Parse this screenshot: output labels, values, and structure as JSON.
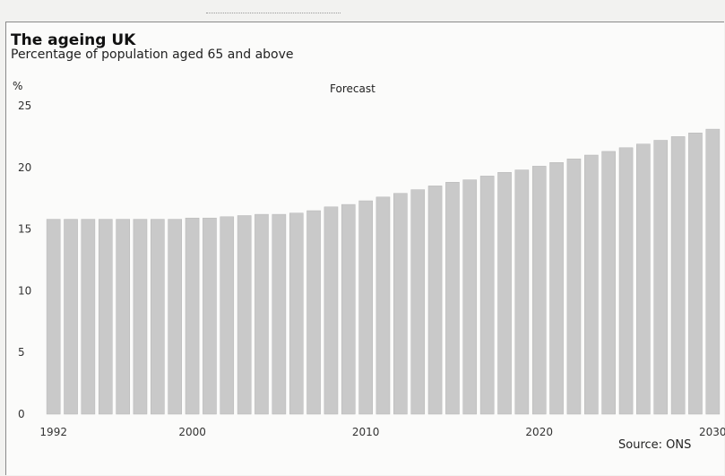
{
  "chart_data": {
    "type": "bar",
    "title": "The ageing UK",
    "subtitle": "Percentage of population aged 65 and above",
    "ylabel": "%",
    "annotation": "Forecast",
    "source": "Source: ONS",
    "ylim": [
      0,
      25
    ],
    "yticks": [
      "0",
      "5",
      "10",
      "15",
      "20",
      "25"
    ],
    "xtick_labels": [
      {
        "year": 1992,
        "label": "1992"
      },
      {
        "year": 2000,
        "label": "2000"
      },
      {
        "year": 2010,
        "label": "2010"
      },
      {
        "year": 2020,
        "label": "2020"
      },
      {
        "year": 2030,
        "label": "2030"
      }
    ],
    "categories": [
      1992,
      1993,
      1994,
      1995,
      1996,
      1997,
      1998,
      1999,
      2000,
      2001,
      2002,
      2003,
      2004,
      2005,
      2006,
      2007,
      2008,
      2009,
      2010,
      2011,
      2012,
      2013,
      2014,
      2015,
      2016,
      2017,
      2018,
      2019,
      2020,
      2021,
      2022,
      2023,
      2024,
      2025,
      2026,
      2027,
      2028,
      2029,
      2030
    ],
    "values": [
      15.8,
      15.8,
      15.8,
      15.8,
      15.8,
      15.8,
      15.8,
      15.8,
      15.9,
      15.9,
      16.0,
      16.1,
      16.2,
      16.2,
      16.3,
      16.5,
      16.8,
      17.0,
      17.3,
      17.6,
      17.9,
      18.2,
      18.5,
      18.8,
      19.0,
      19.3,
      19.6,
      19.8,
      20.1,
      20.4,
      20.7,
      21.0,
      21.3,
      21.6,
      21.9,
      22.2,
      22.5,
      22.8,
      23.1
    ],
    "bar_color": "#c9c9c9",
    "grid": false
  }
}
